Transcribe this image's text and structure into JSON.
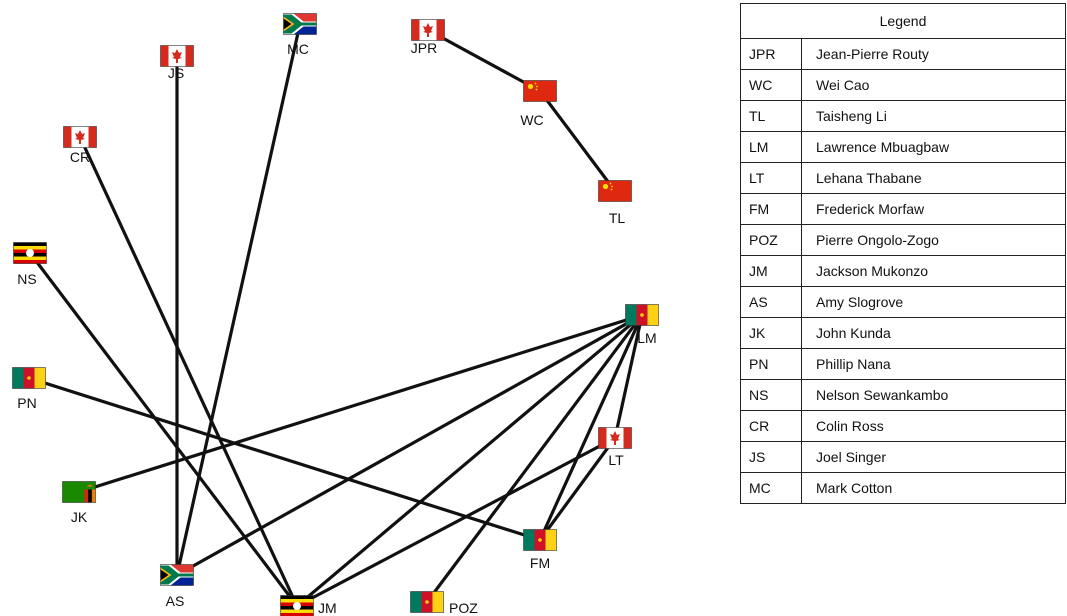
{
  "nodes": [
    {
      "id": "JPR",
      "label": "JPR",
      "flag": "canada-flag"
    },
    {
      "id": "WC",
      "label": "WC",
      "flag": "china-flag"
    },
    {
      "id": "TL",
      "label": "TL",
      "flag": "china-flag"
    },
    {
      "id": "MC",
      "label": "MC",
      "flag": "south-africa-flag"
    },
    {
      "id": "JS",
      "label": "JS",
      "flag": "canada-flag"
    },
    {
      "id": "CR",
      "label": "CR",
      "flag": "canada-flag"
    },
    {
      "id": "NS",
      "label": "NS",
      "flag": "uganda-flag"
    },
    {
      "id": "PN",
      "label": "PN",
      "flag": "cameroon-flag"
    },
    {
      "id": "JK",
      "label": "JK",
      "flag": "zambia-flag"
    },
    {
      "id": "AS",
      "label": "AS",
      "flag": "south-africa-flag"
    },
    {
      "id": "JM",
      "label": "JM",
      "flag": "uganda-flag"
    },
    {
      "id": "POZ",
      "label": "POZ",
      "flag": "cameroon-flag"
    },
    {
      "id": "FM",
      "label": "FM",
      "flag": "cameroon-flag"
    },
    {
      "id": "LT",
      "label": "LT",
      "flag": "canada-flag"
    },
    {
      "id": "LM",
      "label": "LM",
      "flag": "cameroon-flag"
    }
  ],
  "edges": [
    [
      "JPR",
      "WC"
    ],
    [
      "WC",
      "TL"
    ],
    [
      "JS",
      "AS"
    ],
    [
      "MC",
      "AS"
    ],
    [
      "CR",
      "JM"
    ],
    [
      "NS",
      "JM"
    ],
    [
      "PN",
      "FM"
    ],
    [
      "JK",
      "LM"
    ],
    [
      "AS",
      "LM"
    ],
    [
      "JM",
      "LM"
    ],
    [
      "JM",
      "LT"
    ],
    [
      "POZ",
      "LM"
    ],
    [
      "FM",
      "LM"
    ],
    [
      "FM",
      "LT"
    ],
    [
      "LT",
      "LM"
    ]
  ],
  "legend": {
    "title": "Legend",
    "rows": [
      {
        "abbr": "JPR",
        "name": "Jean-Pierre Routy"
      },
      {
        "abbr": "WC",
        "name": "Wei Cao"
      },
      {
        "abbr": "TL",
        "name": "Taisheng Li"
      },
      {
        "abbr": "LM",
        "name": "Lawrence Mbuagbaw"
      },
      {
        "abbr": "LT",
        "name": "Lehana Thabane"
      },
      {
        "abbr": "FM",
        "name": "Frederick Morfaw"
      },
      {
        "abbr": "POZ",
        "name": "Pierre Ongolo-Zogo"
      },
      {
        "abbr": "JM",
        "name": "Jackson Mukonzo"
      },
      {
        "abbr": "AS",
        "name": "Amy Slogrove"
      },
      {
        "abbr": "JK",
        "name": "John Kunda"
      },
      {
        "abbr": "PN",
        "name": "Phillip Nana"
      },
      {
        "abbr": "NS",
        "name": "Nelson Sewankambo"
      },
      {
        "abbr": "CR",
        "name": "Colin Ross"
      },
      {
        "abbr": "JS",
        "name": "Joel Singer"
      },
      {
        "abbr": "MC",
        "name": "Mark Cotton"
      }
    ]
  }
}
